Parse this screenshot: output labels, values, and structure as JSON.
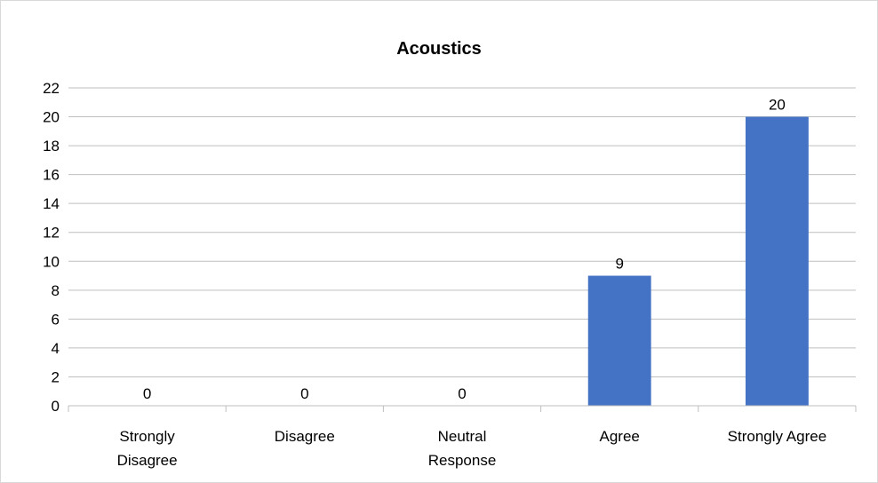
{
  "chart_data": {
    "type": "bar",
    "title": "Acoustics",
    "categories": [
      [
        "Strongly",
        "Disagree"
      ],
      [
        "Disagree"
      ],
      [
        "Neutral",
        "Response"
      ],
      [
        "Agree"
      ],
      [
        "Strongly Agree"
      ]
    ],
    "values": [
      0,
      0,
      0,
      9,
      20
    ],
    "data_labels": [
      "0",
      "0",
      "0",
      "9",
      "20"
    ],
    "ylim": [
      0,
      22
    ],
    "yticks": [
      0,
      2,
      4,
      6,
      8,
      10,
      12,
      14,
      16,
      18,
      20,
      22
    ],
    "xlabel": "",
    "ylabel": "",
    "grid": true,
    "legend": "none",
    "bar_color": "#4472c4",
    "grid_color": "#bfbfbf"
  }
}
